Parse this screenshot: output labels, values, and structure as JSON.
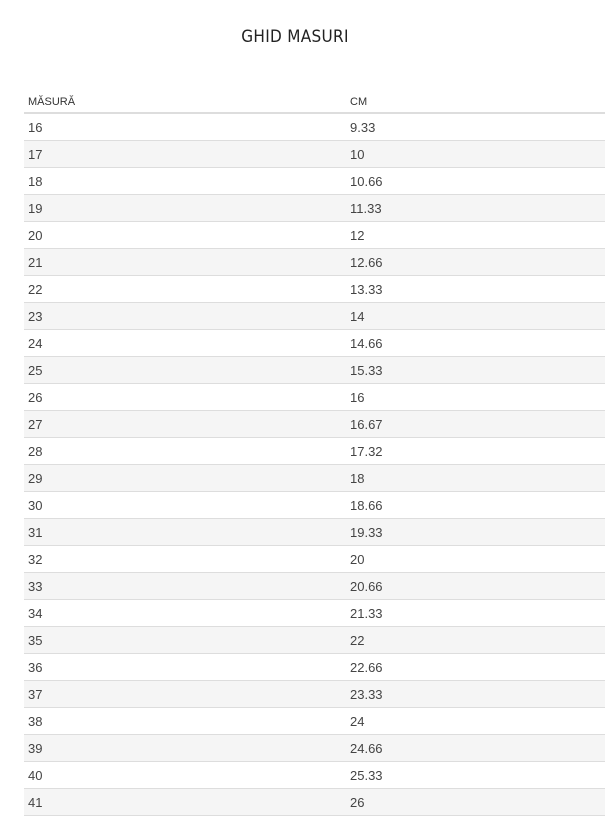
{
  "title": "GHID MASURI",
  "table": {
    "headers": [
      "MĂSURĂ",
      "CM"
    ],
    "rows": [
      [
        "16",
        "9.33"
      ],
      [
        "17",
        "10"
      ],
      [
        "18",
        "10.66"
      ],
      [
        "19",
        "11.33"
      ],
      [
        "20",
        "12"
      ],
      [
        "21",
        "12.66"
      ],
      [
        "22",
        "13.33"
      ],
      [
        "23",
        "14"
      ],
      [
        "24",
        "14.66"
      ],
      [
        "25",
        "15.33"
      ],
      [
        "26",
        "16"
      ],
      [
        "27",
        "16.67"
      ],
      [
        "28",
        "17.32"
      ],
      [
        "29",
        "18"
      ],
      [
        "30",
        "18.66"
      ],
      [
        "31",
        "19.33"
      ],
      [
        "32",
        "20"
      ],
      [
        "33",
        "20.66"
      ],
      [
        "34",
        "21.33"
      ],
      [
        "35",
        "22"
      ],
      [
        "36",
        "22.66"
      ],
      [
        "37",
        "23.33"
      ],
      [
        "38",
        "24"
      ],
      [
        "39",
        "24.66"
      ],
      [
        "40",
        "25.33"
      ],
      [
        "41",
        "26"
      ]
    ]
  }
}
